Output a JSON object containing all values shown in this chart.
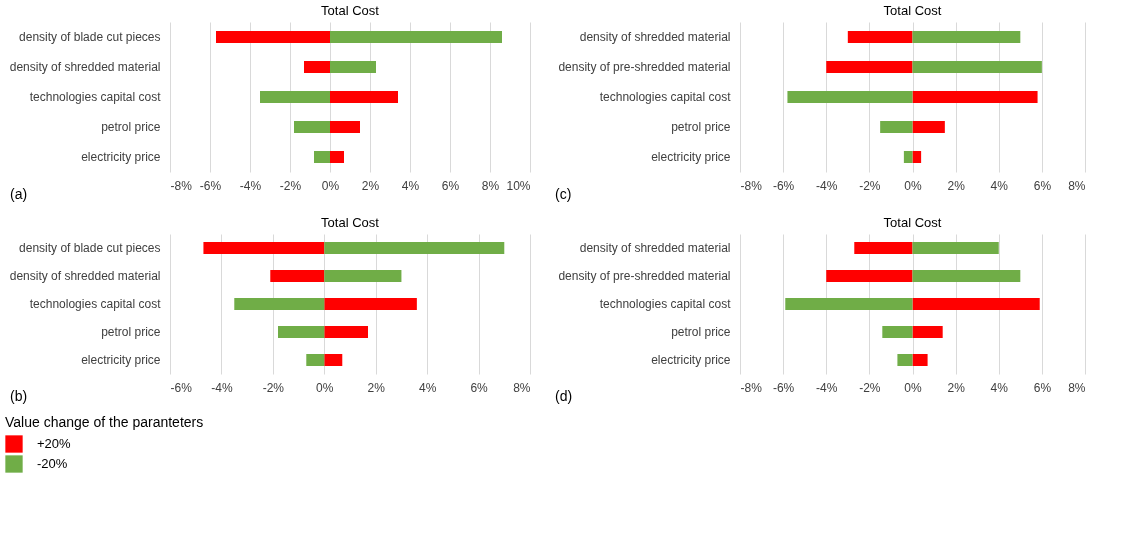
{
  "chart_data": [
    {
      "type": "bar",
      "orientation": "horizontal",
      "title": "Total Cost",
      "categories": [
        "density of blade cut pieces",
        "density of shredded material",
        "technologies capital cost",
        "petrol price",
        "electricity price"
      ],
      "series": [
        {
          "color": "#ff0000",
          "values": [
            -5.7,
            -1.3,
            3.4,
            1.5,
            0.7
          ]
        },
        {
          "color": "#70ad47",
          "values": [
            8.6,
            2.3,
            -3.5,
            -1.8,
            -0.8
          ]
        }
      ],
      "xlim": [
        -8,
        10
      ],
      "xticks": [
        {
          "value": -8,
          "label": "-8%"
        },
        {
          "value": -6,
          "label": "-6%"
        },
        {
          "value": -4,
          "label": "-4%"
        },
        {
          "value": -2,
          "label": "-2%"
        },
        {
          "value": 0,
          "label": "0%"
        },
        {
          "value": 2,
          "label": "2%"
        },
        {
          "value": 4,
          "label": "4%"
        },
        {
          "value": 6,
          "label": "6%"
        },
        {
          "value": 8,
          "label": "8%"
        },
        {
          "value": 10,
          "label": "10%"
        }
      ],
      "grid": "x",
      "stacked": true,
      "annotations": [
        "(a)"
      ]
    },
    {
      "type": "bar",
      "orientation": "horizontal",
      "title": "Total Cost",
      "categories": [
        "density of shredded material",
        "density of pre-shredded material",
        "technologies capital cost",
        "petrol price",
        "electricity price"
      ],
      "series": [
        {
          "color": "#ff0000",
          "values": [
            -3.0,
            -4.0,
            5.8,
            1.5,
            0.4
          ]
        },
        {
          "color": "#70ad47",
          "values": [
            5.0,
            6.0,
            -5.8,
            -1.5,
            -0.4
          ]
        }
      ],
      "xlim": [
        -8,
        8
      ],
      "xticks": [
        {
          "value": -8,
          "label": "-8%"
        },
        {
          "value": -6,
          "label": "-6%"
        },
        {
          "value": -4,
          "label": "-4%"
        },
        {
          "value": -2,
          "label": "-2%"
        },
        {
          "value": 0,
          "label": "0%"
        },
        {
          "value": 2,
          "label": "2%"
        },
        {
          "value": 4,
          "label": "4%"
        },
        {
          "value": 6,
          "label": "6%"
        },
        {
          "value": 8,
          "label": "8%"
        }
      ],
      "grid": "x",
      "stacked": true,
      "annotations": [
        "(c)"
      ]
    },
    {
      "type": "bar",
      "orientation": "horizontal",
      "title": "Total Cost",
      "categories": [
        "density of blade cut pieces",
        "density of shredded material",
        "technologies capital cost",
        "petrol price",
        "electricity price"
      ],
      "series": [
        {
          "name": "+20%",
          "color": "#ff0000",
          "values": [
            -4.7,
            -2.1,
            3.6,
            1.7,
            0.7
          ]
        },
        {
          "name": "-20%",
          "color": "#70ad47",
          "values": [
            7.0,
            3.0,
            -3.5,
            -1.8,
            -0.7
          ]
        }
      ],
      "xlim": [
        -6,
        8
      ],
      "xticks": [
        {
          "value": -6,
          "label": "-6%"
        },
        {
          "value": -4,
          "label": "-4%"
        },
        {
          "value": -2,
          "label": "-2%"
        },
        {
          "value": 0,
          "label": "0%"
        },
        {
          "value": 2,
          "label": "2%"
        },
        {
          "value": 4,
          "label": "4%"
        },
        {
          "value": 6,
          "label": "6%"
        },
        {
          "value": 8,
          "label": "8%"
        }
      ],
      "grid": "x",
      "stacked": true,
      "legend": "bottom left",
      "legend_title": "Value change of the paranteters",
      "annotations": [
        "(b)"
      ]
    },
    {
      "type": "bar",
      "orientation": "horizontal",
      "title": "Total Cost",
      "categories": [
        "density of shredded material",
        "density of pre-shredded material",
        "technologies capital cost",
        "petrol price",
        "electricity price"
      ],
      "series": [
        {
          "color": "#ff0000",
          "values": [
            -2.7,
            -4.0,
            5.9,
            1.4,
            0.7
          ]
        },
        {
          "color": "#70ad47",
          "values": [
            4.0,
            5.0,
            -5.9,
            -1.4,
            -0.7
          ]
        }
      ],
      "xlim": [
        -8,
        8
      ],
      "xticks": [
        {
          "value": -8,
          "label": "-8%"
        },
        {
          "value": -6,
          "label": "-6%"
        },
        {
          "value": -4,
          "label": "-4%"
        },
        {
          "value": -2,
          "label": "-2%"
        },
        {
          "value": 0,
          "label": "0%"
        },
        {
          "value": 2,
          "label": "2%"
        },
        {
          "value": 4,
          "label": "4%"
        },
        {
          "value": 6,
          "label": "6%"
        },
        {
          "value": 8,
          "label": "8%"
        }
      ],
      "grid": "x",
      "stacked": true,
      "annotations": [
        "(d)"
      ]
    }
  ]
}
